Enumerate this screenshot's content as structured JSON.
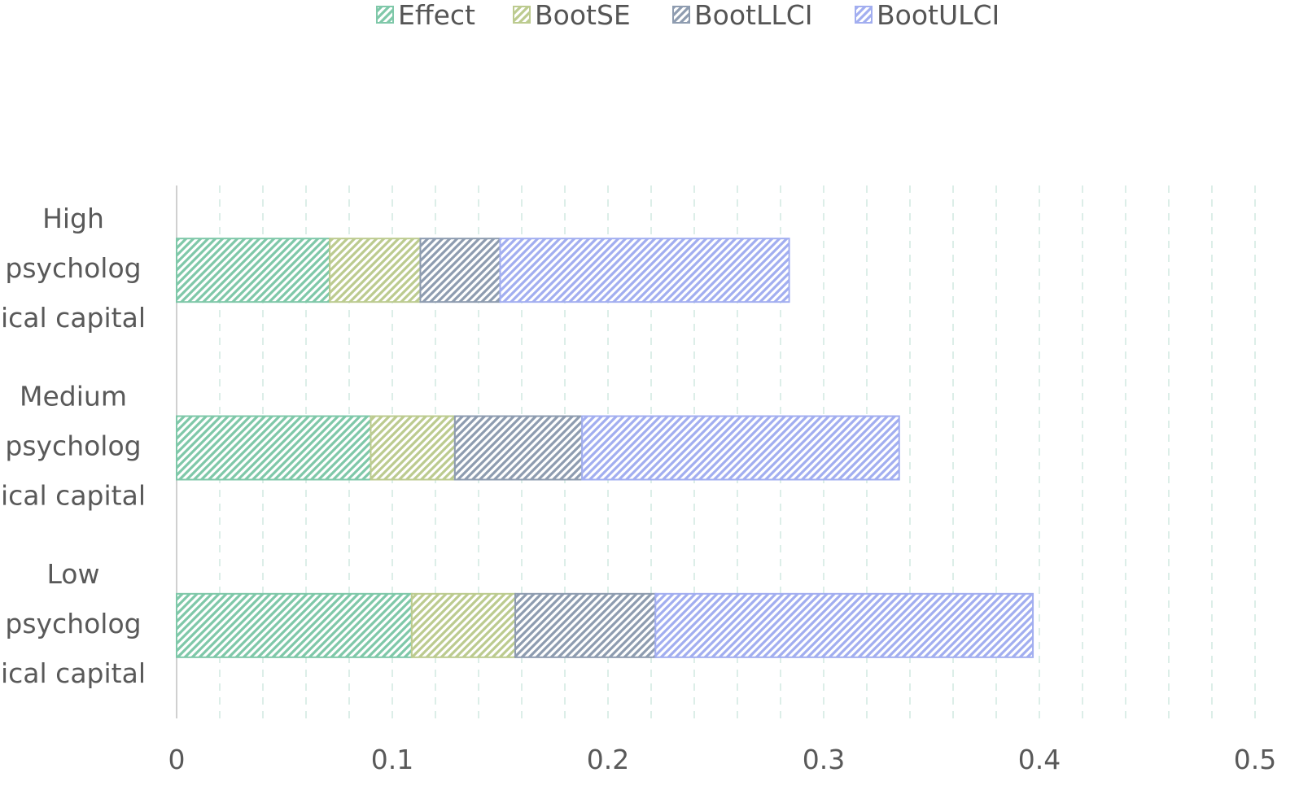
{
  "chart_data": {
    "type": "bar",
    "orientation": "horizontal",
    "stacked": true,
    "categories": [
      [
        "High",
        "psycholog",
        "ical capital"
      ],
      [
        "Medium",
        "psycholog",
        "ical capital"
      ],
      [
        "Low",
        "psycholog",
        "ical capital"
      ]
    ],
    "series": [
      {
        "name": "Effect",
        "values": [
          0.071,
          0.09,
          0.109
        ],
        "color": "#7fc8a9"
      },
      {
        "name": "BootSE",
        "values": [
          0.042,
          0.039,
          0.048
        ],
        "color": "#bccb8f"
      },
      {
        "name": "BootLLCI",
        "values": [
          0.037,
          0.059,
          0.065
        ],
        "color": "#8e9cb0"
      },
      {
        "name": "BootULCI",
        "values": [
          0.134,
          0.147,
          0.175
        ],
        "color": "#a2aef0"
      }
    ],
    "xlim": [
      0,
      0.5
    ],
    "xticks": [
      "0",
      "0.1",
      "0.2",
      "0.3",
      "0.4",
      "0.5"
    ],
    "grid": "vertical-dashed",
    "legend": "top-center",
    "title": "",
    "xlabel": "",
    "ylabel": ""
  }
}
